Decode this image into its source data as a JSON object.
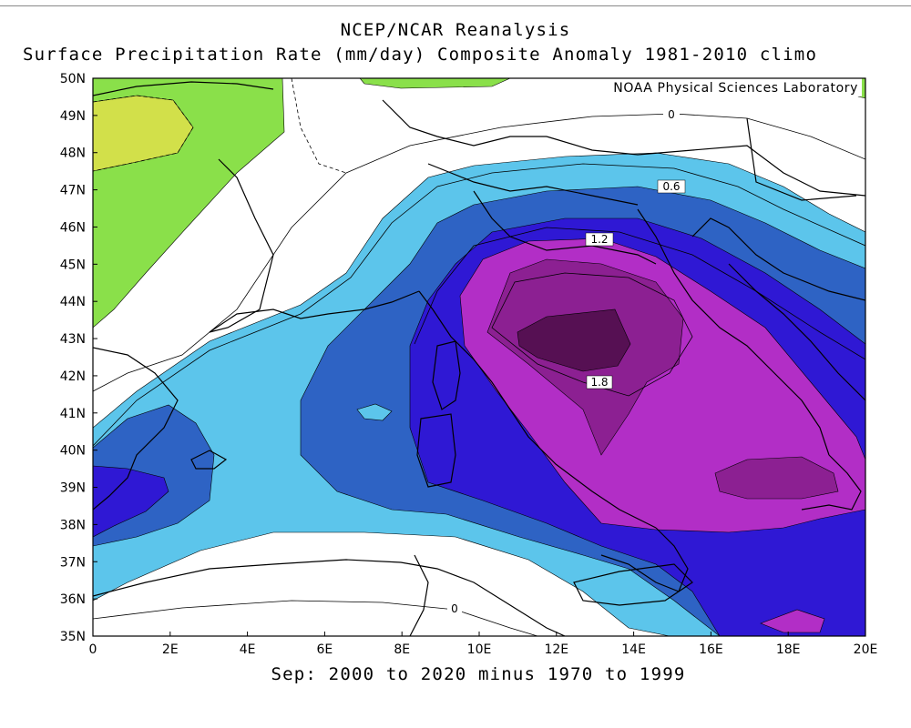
{
  "header": {
    "title_line1": "NCEP/NCAR Reanalysis",
    "title_line2": "Surface Precipitation Rate (mm/day) Composite Anomaly 1981-2010 climo",
    "credit": "NOAA Physical Sciences Laboratory"
  },
  "footer": {
    "period_label": "Sep: 2000 to 2020 minus 1970 to 1999"
  },
  "map": {
    "variable": "Surface Precipitation Rate (mm/day)",
    "lat_range": [
      35,
      50
    ],
    "lon_range": [
      0,
      20
    ],
    "lat_ticks": [
      "35N",
      "36N",
      "37N",
      "38N",
      "39N",
      "40N",
      "41N",
      "42N",
      "43N",
      "44N",
      "45N",
      "46N",
      "47N",
      "48N",
      "49N",
      "50N"
    ],
    "lon_ticks": [
      "0",
      "2E",
      "4E",
      "6E",
      "8E",
      "10E",
      "12E",
      "14E",
      "16E",
      "18E",
      "20E"
    ],
    "contour_labels": [
      "0",
      "0.6",
      "1.2",
      "1.8",
      "0"
    ],
    "fill_colors": {
      "neg_light": "#8ae04a",
      "neg_strong": "#d2e04a",
      "level_0_3": "#5cc5eb",
      "level_0_9": "#2e63c4",
      "level_1_2": "#2f18d4",
      "level_1_5": "#b22ec6",
      "level_1_8": "#8c2092",
      "level_2_1": "#561053"
    }
  }
}
